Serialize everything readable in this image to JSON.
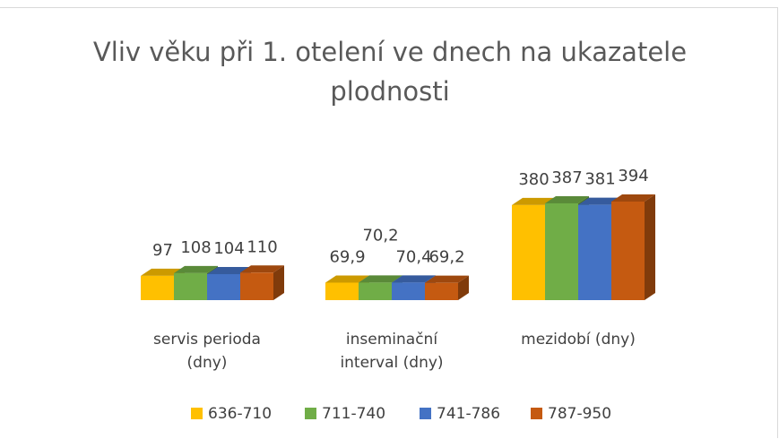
{
  "chart_data": {
    "type": "bar3d",
    "title": "Vliv věku při 1. otelení ve dnech na ukazatele plodnosti",
    "categories": [
      "servis perioda (dny)",
      "inseminační interval (dny)",
      "mezidobí (dny)"
    ],
    "series": [
      {
        "name": "636-710",
        "color": "#ffc000",
        "values": [
          97,
          69.9,
          380
        ],
        "value_labels": [
          "97",
          "69,9",
          "380"
        ]
      },
      {
        "name": "711-740",
        "color": "#70ad47",
        "values": [
          108,
          70.2,
          387
        ],
        "value_labels": [
          "108",
          "70,2",
          "387"
        ]
      },
      {
        "name": "741-786",
        "color": "#4472c4",
        "values": [
          104,
          70.4,
          381
        ],
        "value_labels": [
          "104",
          "70,4",
          "381"
        ]
      },
      {
        "name": "787-950",
        "color": "#c55a11",
        "values": [
          110,
          69.2,
          394
        ],
        "value_labels": [
          "110",
          "69,2",
          "394"
        ]
      }
    ],
    "legend": "bottom"
  }
}
